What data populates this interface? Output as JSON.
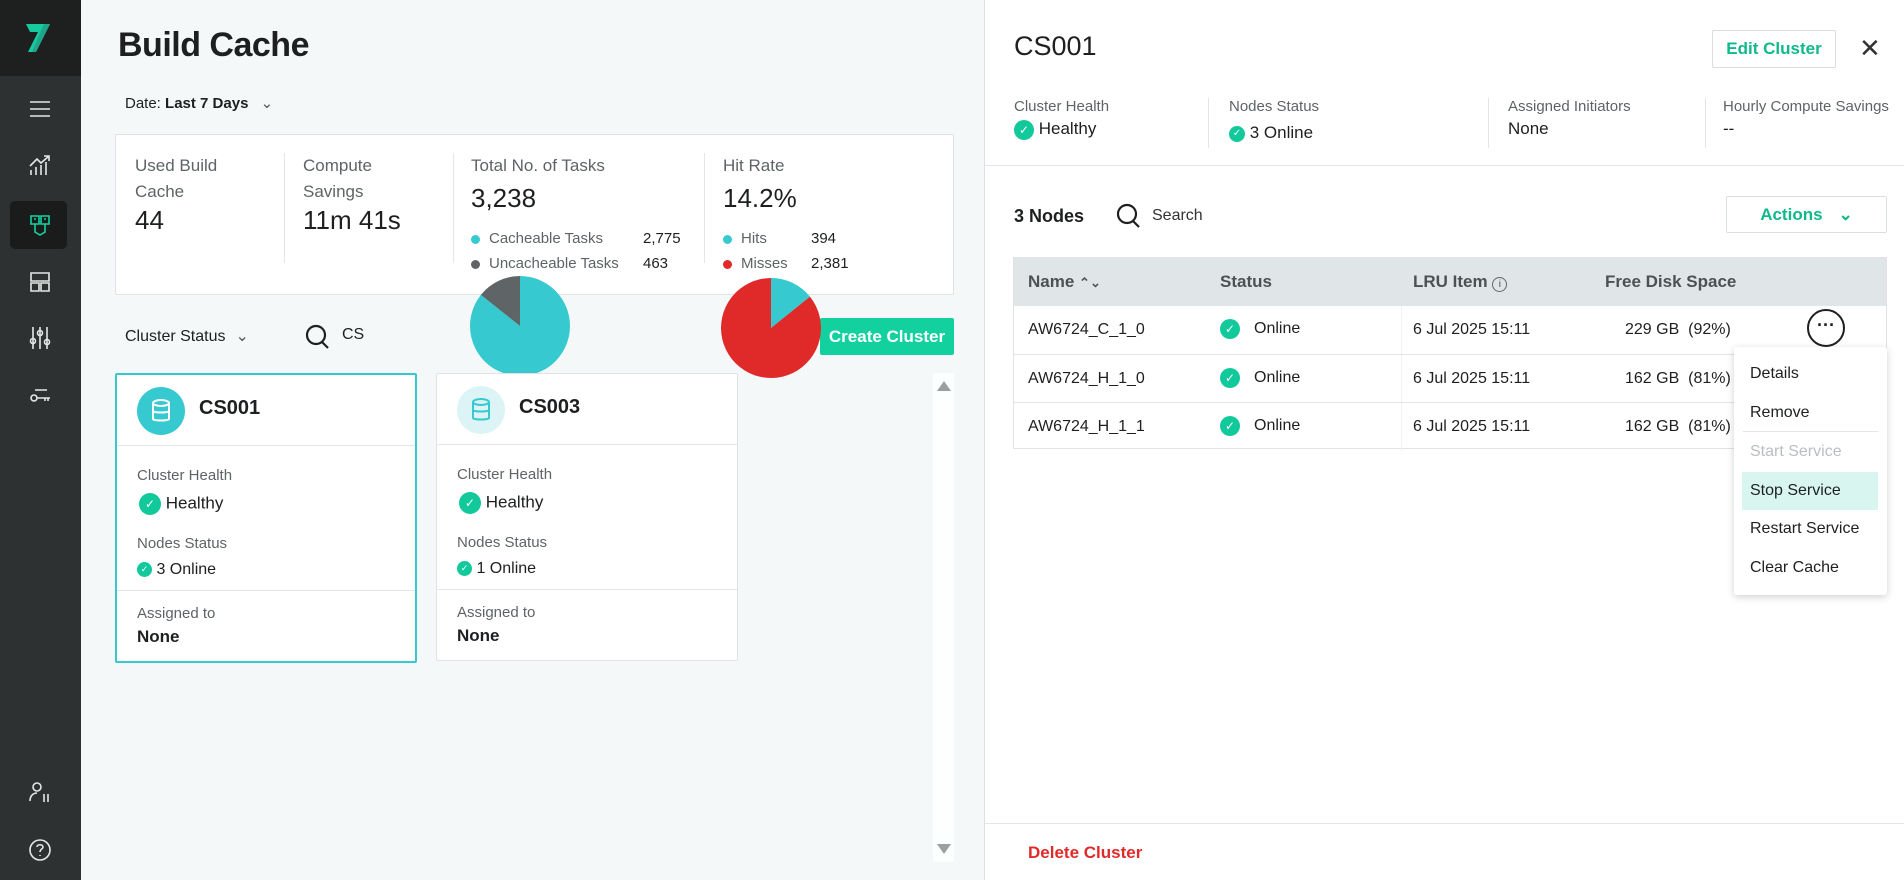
{
  "colors": {
    "accent": "#12d19f",
    "teal": "#36c9cf",
    "gray": "#5f6566",
    "red": "#e02a2a",
    "sidebar": "#2e3131"
  },
  "sidebar": {
    "items": [
      {
        "icon": "menu-icon"
      },
      {
        "icon": "analytics-icon"
      },
      {
        "icon": "build-cache-icon",
        "active": true
      },
      {
        "icon": "dashboard-icon"
      },
      {
        "icon": "settings-sliders-icon"
      },
      {
        "icon": "key-icon"
      },
      {
        "icon": "user-settings-icon"
      },
      {
        "icon": "help-icon"
      }
    ]
  },
  "page": {
    "title": "Build Cache",
    "date_label": "Date:",
    "date_value": "Last 7 Days"
  },
  "stats": {
    "used": {
      "label_1": "Used Build",
      "label_2": "Cache",
      "value": "44"
    },
    "savings": {
      "label_1": "Compute",
      "label_2": "Savings",
      "value": "11m 41s"
    },
    "tasks": {
      "label": "Total No. of Tasks",
      "value": "3,238",
      "legend": [
        {
          "label": "Cacheable Tasks",
          "value": "2,775",
          "num": 2775,
          "color": "#36c9cf"
        },
        {
          "label": "Uncacheable Tasks",
          "value": "463",
          "num": 463,
          "color": "#5f6566"
        }
      ]
    },
    "hitrate": {
      "label": "Hit Rate",
      "value": "14.2%",
      "legend": [
        {
          "label": "Hits",
          "value": "394",
          "num": 394,
          "color": "#36c9cf"
        },
        {
          "label": "Misses",
          "value": "2,381",
          "num": 2381,
          "color": "#e02a2a"
        }
      ]
    }
  },
  "filters": {
    "cluster_status": "Cluster Status",
    "search_value": "CS",
    "create_button": "Create Cluster"
  },
  "clusters": [
    {
      "name": "CS001",
      "health_label": "Cluster Health",
      "health": "Healthy",
      "nodes_label": "Nodes Status",
      "nodes": "3 Online",
      "assigned_label": "Assigned to",
      "assigned": "None",
      "selected": true
    },
    {
      "name": "CS003",
      "health_label": "Cluster Health",
      "health": "Healthy",
      "nodes_label": "Nodes Status",
      "nodes": "1 Online",
      "assigned_label": "Assigned to",
      "assigned": "None",
      "selected": false
    }
  ],
  "detail": {
    "title": "CS001",
    "edit_button": "Edit Cluster",
    "info": [
      {
        "label": "Cluster Health",
        "value": "Healthy"
      },
      {
        "label": "Nodes Status",
        "value": "3 Online"
      },
      {
        "label": "Assigned Initiators",
        "value": "None"
      },
      {
        "label": "Hourly Compute Savings",
        "value": "--"
      }
    ],
    "nodes_count": "3 Nodes",
    "search_placeholder": "Search",
    "actions_button": "Actions",
    "columns": [
      "Name",
      "Status",
      "LRU Item",
      "Free Disk Space"
    ],
    "rows": [
      {
        "name": "AW6724_C_1_0",
        "status": "Online",
        "lru": "6 Jul 2025 15:11",
        "disk": "229 GB",
        "pct": "(92%)"
      },
      {
        "name": "AW6724_H_1_0",
        "status": "Online",
        "lru": "6 Jul 2025 15:11",
        "disk": "162 GB",
        "pct": "(81%)"
      },
      {
        "name": "AW6724_H_1_1",
        "status": "Online",
        "lru": "6 Jul 2025 15:11",
        "disk": "162 GB",
        "pct": "(81%)"
      }
    ],
    "menu": [
      {
        "label": "Details"
      },
      {
        "label": "Remove"
      },
      {
        "label": "Start Service",
        "disabled": true
      },
      {
        "label": "Stop Service",
        "hovered": true
      },
      {
        "label": "Restart Service"
      },
      {
        "label": "Clear Cache"
      }
    ],
    "delete_button": "Delete Cluster"
  }
}
